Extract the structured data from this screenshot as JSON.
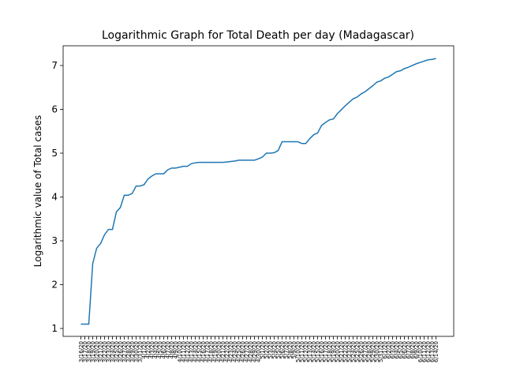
{
  "chart_data": {
    "type": "line",
    "title": "Logarithmic Graph for Total Death per day (Madagascar)",
    "y_label": "Logarithmic value of Total cases",
    "categories": [
      "3/16/20",
      "3/17/20",
      "3/18/20",
      "3/19/20",
      "3/20/20",
      "3/21/20",
      "3/22/20",
      "3/23/20",
      "3/24/20",
      "3/25/20",
      "3/26/20",
      "3/27/20",
      "3/28/20",
      "3/29/20",
      "3/30/20",
      "3/31/20",
      "4/1/20",
      "4/2/20",
      "4/3/20",
      "4/4/20",
      "4/5/20",
      "4/6/20",
      "4/7/20",
      "4/8/20",
      "4/9/20",
      "4/10/20",
      "4/11/20",
      "4/12/20",
      "4/13/20",
      "4/14/20",
      "4/15/20",
      "4/16/20",
      "4/17/20",
      "4/18/20",
      "4/19/20",
      "4/20/20",
      "4/21/20",
      "4/22/20",
      "4/23/20",
      "4/24/20",
      "4/25/20",
      "4/26/20",
      "4/27/20",
      "4/28/20",
      "4/29/20",
      "4/30/20",
      "5/1/20",
      "5/2/20",
      "5/3/20",
      "5/4/20",
      "5/5/20",
      "5/6/20",
      "5/7/20",
      "5/8/20",
      "5/9/20",
      "5/10/20",
      "5/11/20",
      "5/12/20",
      "5/13/20",
      "5/14/20",
      "5/15/20",
      "5/16/20",
      "5/17/20",
      "5/18/20",
      "5/19/20",
      "5/20/20",
      "5/21/20",
      "5/22/20",
      "5/23/20",
      "5/24/20",
      "5/25/20",
      "5/26/20",
      "5/27/20",
      "5/28/20",
      "5/29/20",
      "5/30/20",
      "5/31/20",
      "6/1/20",
      "6/2/20",
      "6/3/20",
      "6/4/20",
      "6/5/20",
      "6/6/20",
      "6/7/20",
      "6/8/20",
      "6/9/20",
      "6/10/20",
      "6/11/20",
      "6/12/20",
      "6/13/20",
      "6/14/20"
    ],
    "series": [
      {
        "name": "Total Death",
        "color": "#1f77b4",
        "values": [
          1.1,
          1.1,
          1.1,
          2.48,
          2.83,
          2.94,
          3.14,
          3.26,
          3.26,
          3.66,
          3.76,
          4.04,
          4.04,
          4.08,
          4.25,
          4.25,
          4.28,
          4.41,
          4.48,
          4.53,
          4.53,
          4.53,
          4.62,
          4.66,
          4.66,
          4.68,
          4.7,
          4.7,
          4.76,
          4.78,
          4.79,
          4.79,
          4.79,
          4.79,
          4.79,
          4.79,
          4.79,
          4.8,
          4.81,
          4.82,
          4.84,
          4.84,
          4.84,
          4.84,
          4.84,
          4.87,
          4.91,
          5.0,
          5.0,
          5.01,
          5.06,
          5.26,
          5.26,
          5.26,
          5.26,
          5.26,
          5.22,
          5.22,
          5.33,
          5.42,
          5.46,
          5.63,
          5.7,
          5.76,
          5.78,
          5.9,
          5.99,
          6.08,
          6.16,
          6.24,
          6.28,
          6.35,
          6.4,
          6.47,
          6.54,
          6.62,
          6.65,
          6.71,
          6.74,
          6.8,
          6.86,
          6.88,
          6.93,
          6.96,
          7.0,
          7.04,
          7.07,
          7.1,
          7.13,
          7.14,
          7.16
        ]
      }
    ],
    "ylim": [
      0.82,
      7.45
    ],
    "yticks": [
      1,
      2,
      3,
      4,
      5,
      6,
      7
    ],
    "grid": false
  }
}
